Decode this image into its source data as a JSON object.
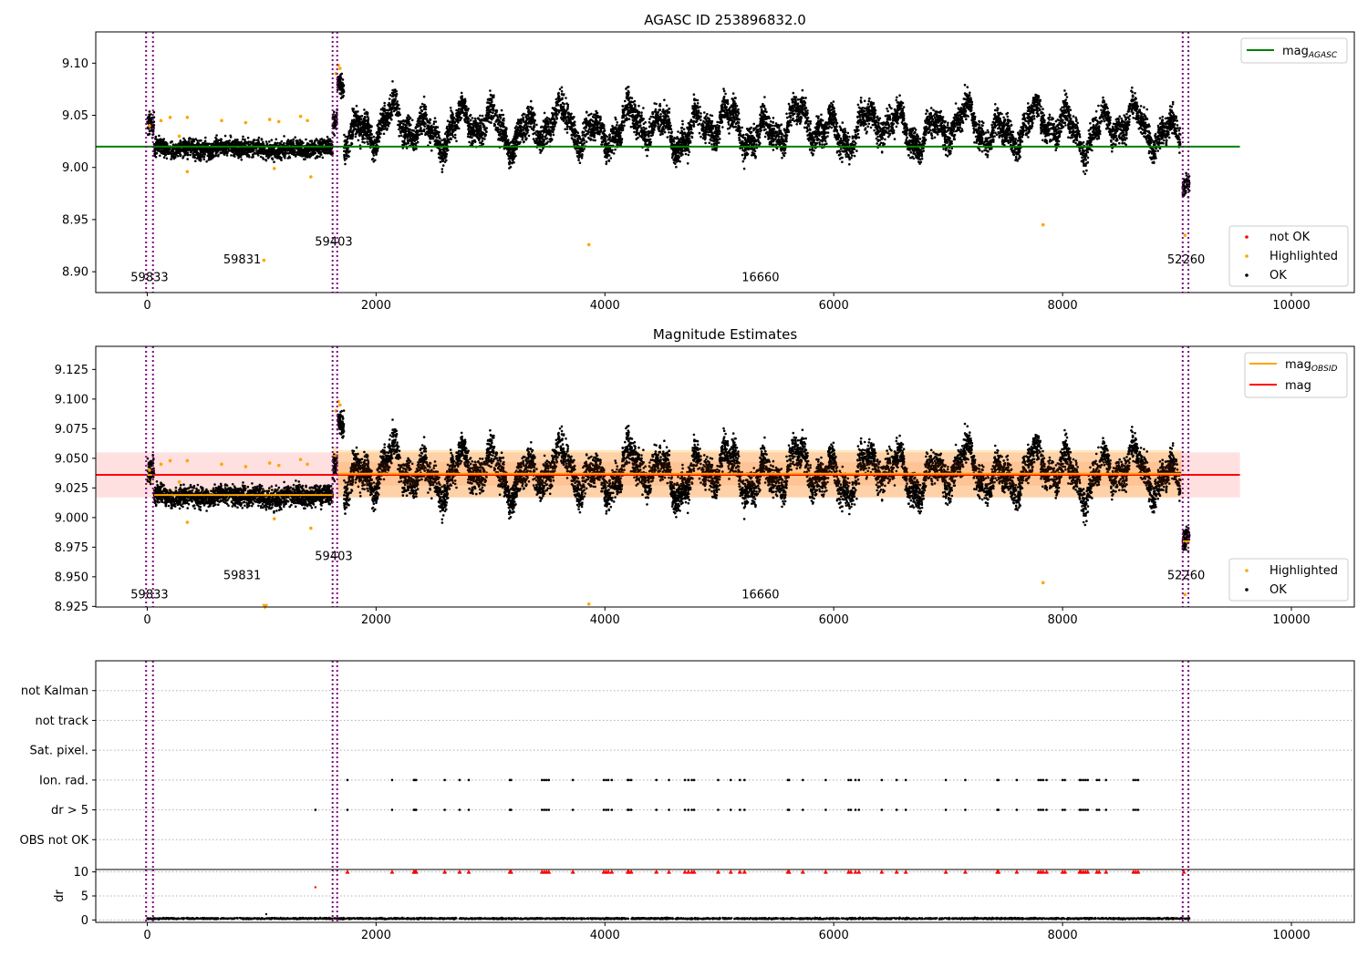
{
  "chart_data": [
    {
      "type": "scatter",
      "title": "AGASC ID 253896832.0",
      "xlim": [
        -450,
        10550
      ],
      "ylim": [
        8.88,
        9.13
      ],
      "xticks": [
        "0",
        "2000",
        "4000",
        "6000",
        "8000",
        "10000"
      ],
      "yticks": [
        "8.90",
        "8.95",
        "9.00",
        "9.05",
        "9.10"
      ],
      "xtick_values": [
        0,
        2000,
        4000,
        6000,
        8000,
        10000
      ],
      "ytick_values": [
        8.9,
        8.95,
        9.0,
        9.05,
        9.1
      ],
      "grid": false,
      "legend_top": {
        "placement": "top-right",
        "entries": [
          {
            "label_main": "mag",
            "label_sub": "AGASC",
            "color": "#008000",
            "kind": "line"
          }
        ]
      },
      "legend_bottom": {
        "placement": "lower-right",
        "entries": [
          {
            "label": "not OK",
            "color": "#ff0000",
            "kind": "dot"
          },
          {
            "label": "Highlighted",
            "color": "#ffa500",
            "kind": "dot"
          },
          {
            "label": "OK",
            "color": "#000000",
            "kind": "dot"
          }
        ]
      },
      "mag_agasc": 9.02,
      "mag_agasc_xrange": [
        -450,
        9550
      ],
      "obsid_boundaries": [
        -10,
        50,
        1620,
        1660,
        9050,
        9100
      ],
      "annotations": [
        {
          "text": "59833",
          "x": 20,
          "y": 8.891
        },
        {
          "text": "59831",
          "x": 830,
          "y": 8.908
        },
        {
          "text": "59403",
          "x": 1630,
          "y": 8.925
        },
        {
          "text": "16660",
          "x": 5360,
          "y": 8.891
        },
        {
          "text": "52260",
          "x": 9080,
          "y": 8.908
        }
      ],
      "highlighted_points": [
        [
          20,
          9.04
        ],
        [
          120,
          9.045
        ],
        [
          200,
          9.048
        ],
        [
          280,
          9.03
        ],
        [
          350,
          8.996
        ],
        [
          350,
          9.048
        ],
        [
          650,
          9.045
        ],
        [
          860,
          9.043
        ],
        [
          1020,
          8.911
        ],
        [
          1070,
          9.046
        ],
        [
          1110,
          8.999
        ],
        [
          1150,
          9.044
        ],
        [
          1340,
          9.049
        ],
        [
          1400,
          9.045
        ],
        [
          1430,
          8.991
        ],
        [
          1650,
          9.09
        ],
        [
          1670,
          9.098
        ],
        [
          1685,
          9.095
        ],
        [
          3860,
          8.926
        ],
        [
          7830,
          8.945
        ],
        [
          9070,
          8.935
        ]
      ],
      "ok_segments": [
        {
          "x0": 0,
          "x1": 60,
          "center": 9.036,
          "amp": 0.006,
          "spread": 0.008
        },
        {
          "x0": 60,
          "x1": 1620,
          "center": 9.018,
          "amp": 0.003,
          "spread": 0.006
        },
        {
          "x0": 1620,
          "x1": 1660,
          "center": 9.045,
          "amp": 0.005,
          "spread": 0.008
        },
        {
          "x0": 1660,
          "x1": 1720,
          "center": 9.082,
          "amp": 0.006,
          "spread": 0.008
        },
        {
          "x0": 1720,
          "x1": 9030,
          "center": 9.038,
          "amp": 0.024,
          "spread": 0.01
        },
        {
          "x0": 9050,
          "x1": 9110,
          "center": 8.985,
          "amp": 0.006,
          "spread": 0.007
        }
      ]
    },
    {
      "type": "scatter",
      "title": "Magnitude Estimates",
      "xlim": [
        -450,
        10550
      ],
      "ylim": [
        8.9245,
        9.1445
      ],
      "xticks": [
        "0",
        "2000",
        "4000",
        "6000",
        "8000",
        "10000"
      ],
      "yticks": [
        "8.925",
        "8.950",
        "8.975",
        "9.000",
        "9.025",
        "9.050",
        "9.075",
        "9.100",
        "9.125"
      ],
      "xtick_values": [
        0,
        2000,
        4000,
        6000,
        8000,
        10000
      ],
      "ytick_values": [
        8.925,
        8.95,
        8.975,
        9.0,
        9.025,
        9.05,
        9.075,
        9.1,
        9.125
      ],
      "grid": false,
      "legend_top": {
        "placement": "top-right",
        "entries": [
          {
            "label_main": "mag",
            "label_sub": "OBSID",
            "color": "#ffa500",
            "kind": "line"
          },
          {
            "label_main": "mag",
            "label_sub": "",
            "color": "#ff0000",
            "kind": "line"
          }
        ]
      },
      "legend_bottom": {
        "placement": "lower-right",
        "entries": [
          {
            "label": "Highlighted",
            "color": "#ffa500",
            "kind": "dot"
          },
          {
            "label": "OK",
            "color": "#000000",
            "kind": "dot"
          }
        ]
      },
      "mag": 9.036,
      "mag_band": [
        9.017,
        9.055
      ],
      "mag_xrange": [
        -450,
        9550
      ],
      "obsid_mags": [
        {
          "x0": 0,
          "x1": 60,
          "mag": 9.036,
          "band": [
            9.028,
            9.045
          ]
        },
        {
          "x0": 60,
          "x1": 1620,
          "mag": 9.019,
          "band": [
            9.014,
            9.024
          ]
        },
        {
          "x0": 1620,
          "x1": 1660,
          "mag": 9.052,
          "band": [
            9.045,
            9.06
          ]
        },
        {
          "x0": 1660,
          "x1": 9040,
          "mag": 9.037,
          "band": [
            9.017,
            9.057
          ]
        },
        {
          "x0": 9050,
          "x1": 9110,
          "mag": 8.98,
          "band": [
            8.975,
            8.985
          ]
        }
      ],
      "obsid_boundaries": [
        -10,
        50,
        1620,
        1660,
        9050,
        9100
      ],
      "annotations": [
        {
          "text": "59833",
          "x": 20,
          "y": 8.932
        },
        {
          "text": "59831",
          "x": 830,
          "y": 8.948
        },
        {
          "text": "59403",
          "x": 1630,
          "y": 8.964
        },
        {
          "text": "16660",
          "x": 5360,
          "y": 8.932
        },
        {
          "text": "52260",
          "x": 9080,
          "y": 8.948
        }
      ],
      "highlighted_points": [
        [
          20,
          9.04
        ],
        [
          120,
          9.045
        ],
        [
          200,
          9.048
        ],
        [
          280,
          9.03
        ],
        [
          350,
          8.996
        ],
        [
          350,
          9.048
        ],
        [
          650,
          9.045
        ],
        [
          860,
          9.043
        ],
        [
          1070,
          9.046
        ],
        [
          1110,
          8.999
        ],
        [
          1150,
          9.044
        ],
        [
          1340,
          9.049
        ],
        [
          1400,
          9.045
        ],
        [
          1430,
          8.991
        ],
        [
          1650,
          9.09
        ],
        [
          1670,
          9.098
        ],
        [
          1685,
          9.095
        ],
        [
          3860,
          8.927
        ],
        [
          7830,
          8.945
        ],
        [
          9070,
          8.935
        ]
      ],
      "clipped_points": [
        [
          1030,
          8.927
        ]
      ],
      "ok_segments": [
        {
          "x0": 0,
          "x1": 60,
          "center": 9.036,
          "amp": 0.006,
          "spread": 0.008
        },
        {
          "x0": 60,
          "x1": 1620,
          "center": 9.018,
          "amp": 0.003,
          "spread": 0.006
        },
        {
          "x0": 1620,
          "x1": 1660,
          "center": 9.045,
          "amp": 0.005,
          "spread": 0.008
        },
        {
          "x0": 1660,
          "x1": 1720,
          "center": 9.082,
          "amp": 0.006,
          "spread": 0.008
        },
        {
          "x0": 1720,
          "x1": 9030,
          "center": 9.038,
          "amp": 0.024,
          "spread": 0.01
        },
        {
          "x0": 9050,
          "x1": 9110,
          "center": 8.985,
          "amp": 0.006,
          "spread": 0.007
        }
      ]
    },
    {
      "type": "scatter",
      "title": "",
      "xlim": [
        -450,
        10550
      ],
      "ylim": [
        0,
        7
      ],
      "categories": [
        "not Kalman",
        "not track",
        "Sat. pixel.",
        "Ion. rad.",
        "dr > 5",
        "OBS not OK"
      ],
      "category_values": [
        6,
        5,
        4,
        3,
        2,
        1
      ],
      "grid": true,
      "obsid_boundaries": [
        -10,
        50,
        1620,
        1660,
        9050,
        9100
      ],
      "flag_ion_rad_x": [
        1750,
        2140,
        2330,
        2340,
        2350,
        2600,
        2730,
        2810,
        3170,
        3180,
        3450,
        3470,
        3490,
        3510,
        3720,
        3990,
        4010,
        4030,
        4060,
        4200,
        4210,
        4230,
        4450,
        4560,
        4700,
        4730,
        4760,
        4780,
        4990,
        5100,
        5180,
        5220,
        5600,
        5610,
        5730,
        5930,
        6130,
        6150,
        6190,
        6220,
        6420,
        6550,
        6630,
        6980,
        7150,
        7430,
        7440,
        7600,
        7790,
        7810,
        7830,
        7860,
        8000,
        8020,
        8150,
        8160,
        8180,
        8200,
        8220,
        8300,
        8320,
        8380,
        8620,
        8640,
        8660
      ],
      "flag_dr_x": [
        1470,
        1750,
        2140,
        2330,
        2340,
        2350,
        2600,
        2730,
        2810,
        3170,
        3180,
        3450,
        3470,
        3490,
        3510,
        3720,
        3990,
        4010,
        4030,
        4060,
        4200,
        4210,
        4230,
        4450,
        4560,
        4700,
        4730,
        4760,
        4780,
        4990,
        5100,
        5180,
        5220,
        5600,
        5610,
        5730,
        5930,
        6130,
        6150,
        6190,
        6220,
        6420,
        6550,
        6630,
        6980,
        7150,
        7430,
        7440,
        7600,
        7790,
        7810,
        7830,
        7860,
        8000,
        8020,
        8150,
        8160,
        8180,
        8200,
        8220,
        8300,
        8320,
        8380,
        8620,
        8640,
        8660
      ]
    },
    {
      "type": "scatter",
      "title": "",
      "xlabel": "",
      "ylabel": "dr",
      "xlim": [
        -450,
        10550
      ],
      "ylim": [
        -0.5,
        10.5
      ],
      "xticks": [
        "0",
        "2000",
        "4000",
        "6000",
        "8000",
        "10000"
      ],
      "yticks": [
        "0",
        "5",
        "10"
      ],
      "xtick_values": [
        0,
        2000,
        4000,
        6000,
        8000,
        10000
      ],
      "ytick_values": [
        0,
        5,
        10
      ],
      "grid": true,
      "obsid_boundaries": [
        -10,
        50,
        1620,
        1660,
        9050,
        9100
      ],
      "dr_baseline": 0.3,
      "dr_clip": 10,
      "dr_outliers": [
        [
          1040,
          1.2
        ],
        [
          1470,
          6.8
        ]
      ],
      "clipped_x": [
        1750,
        2140,
        2330,
        2340,
        2350,
        2600,
        2730,
        2810,
        3170,
        3180,
        3450,
        3470,
        3490,
        3510,
        3720,
        3990,
        4010,
        4030,
        4060,
        4200,
        4210,
        4230,
        4450,
        4560,
        4700,
        4730,
        4760,
        4780,
        4990,
        5100,
        5180,
        5220,
        5600,
        5610,
        5730,
        5930,
        6130,
        6150,
        6190,
        6220,
        6420,
        6550,
        6630,
        6980,
        7150,
        7430,
        7440,
        7600,
        7790,
        7810,
        7830,
        7860,
        8000,
        8020,
        8150,
        8160,
        8180,
        8200,
        8220,
        8300,
        8320,
        8380,
        8620,
        8640,
        8660,
        9060
      ]
    }
  ]
}
